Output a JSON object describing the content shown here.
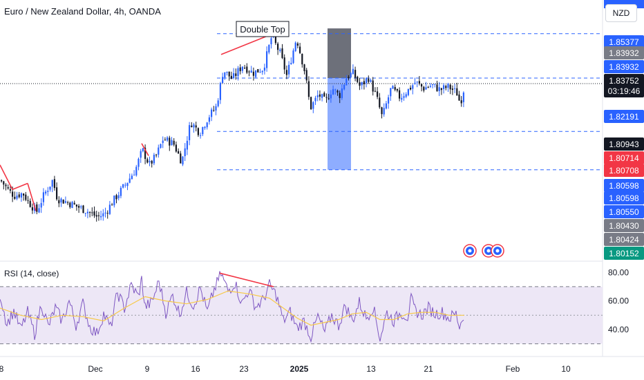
{
  "header": {
    "title": "Euro / New Zealand Dollar, 4h, OANDA",
    "currency_button": "NZD"
  },
  "colors": {
    "up": "#2962ff",
    "down": "#131722",
    "annotation_line": "#f23645",
    "level_line": "#2962ff",
    "rsi_line": "#7e57c2",
    "rsi_ma": "#f7c948",
    "rsi_band": "#ede7f6",
    "shade_top": "#5d606b",
    "shade_bottom": "#82a4ff"
  },
  "chart_data": [
    {
      "type": "candlestick",
      "title": "Euro / New Zealand Dollar, 4h, OANDA",
      "annotation": "Double Top",
      "x_ticks": [
        "8",
        "Dec",
        "9",
        "16",
        "23",
        "2025",
        "13",
        "21",
        "Feb",
        "10"
      ],
      "price_labels": [
        {
          "value": "1.85377",
          "style": "blue"
        },
        {
          "value": "1.83932",
          "style": "gray"
        },
        {
          "value": "1.83932",
          "style": "blue"
        },
        {
          "value": "1.83752",
          "style": "dark",
          "sub": "03:19:46"
        },
        {
          "value": "1.82191",
          "style": "blue"
        },
        {
          "value": "1.80943",
          "style": "dark"
        },
        {
          "value": "1.80714",
          "style": "red"
        },
        {
          "value": "1.80708",
          "style": "red"
        },
        {
          "value": "1.80598",
          "style": "blue"
        },
        {
          "value": "1.80598",
          "style": "blue"
        },
        {
          "value": "1.80550",
          "style": "blue"
        },
        {
          "value": "1.80430",
          "style": "gray"
        },
        {
          "value": "1.80424",
          "style": "gray"
        },
        {
          "value": "1.80152",
          "style": "green"
        }
      ],
      "horizontal_levels": [
        1.85377,
        1.83932,
        1.82191,
        1.80943
      ],
      "current_price": 1.83752,
      "ylim": [
        1.781,
        1.858
      ],
      "segments": [
        [
          0,
          1.806
        ],
        [
          12,
          1.8025
        ],
        [
          20,
          1.801
        ],
        [
          32,
          1.8018
        ],
        [
          40,
          1.799
        ],
        [
          52,
          1.7958
        ],
        [
          62,
          1.801
        ],
        [
          75,
          1.806
        ],
        [
          82,
          1.8
        ],
        [
          95,
          1.799
        ],
        [
          110,
          1.7975
        ],
        [
          125,
          1.796
        ],
        [
          140,
          1.794
        ],
        [
          150,
          1.795
        ],
        [
          165,
          1.8
        ],
        [
          180,
          1.8045
        ],
        [
          195,
          1.8095
        ],
        [
          205,
          1.816
        ],
        [
          215,
          1.811
        ],
        [
          225,
          1.814
        ],
        [
          235,
          1.8195
        ],
        [
          250,
          1.818
        ],
        [
          262,
          1.812
        ],
        [
          275,
          1.825
        ],
        [
          288,
          1.8215
        ],
        [
          300,
          1.8265
        ],
        [
          312,
          1.83
        ],
        [
          322,
          1.842
        ],
        [
          335,
          1.839
        ],
        [
          350,
          1.8435
        ],
        [
          365,
          1.841
        ],
        [
          380,
          1.8425
        ],
        [
          392,
          1.8528
        ],
        [
          404,
          1.8475
        ],
        [
          414,
          1.84
        ],
        [
          428,
          1.8525
        ],
        [
          440,
          1.8415
        ],
        [
          448,
          1.8295
        ],
        [
          460,
          1.834
        ],
        [
          470,
          1.8315
        ],
        [
          480,
          1.836
        ],
        [
          490,
          1.8335
        ],
        [
          500,
          1.8395
        ],
        [
          510,
          1.841
        ],
        [
          520,
          1.8365
        ],
        [
          532,
          1.8395
        ],
        [
          544,
          1.833
        ],
        [
          552,
          1.8265
        ],
        [
          565,
          1.836
        ],
        [
          578,
          1.833
        ],
        [
          590,
          1.8355
        ],
        [
          600,
          1.838
        ],
        [
          612,
          1.836
        ],
        [
          624,
          1.837
        ],
        [
          636,
          1.8355
        ],
        [
          648,
          1.8365
        ],
        [
          660,
          1.8345
        ],
        [
          665,
          1.831
        ],
        [
          672,
          1.8375
        ]
      ]
    },
    {
      "type": "line",
      "title": "RSI (14, close)",
      "y_ticks": [
        "80.00",
        "60.00",
        "40.00"
      ],
      "band": [
        30,
        70
      ],
      "midline": 50,
      "ylim": [
        24,
        84
      ],
      "series": [
        {
          "values": [
            [
              0,
              65
            ],
            [
              10,
              44
            ],
            [
              20,
              53
            ],
            [
              30,
              40
            ],
            [
              40,
              52
            ],
            [
              50,
              37
            ],
            [
              60,
              58
            ],
            [
              70,
              42
            ],
            [
              80,
              55
            ],
            [
              90,
              46
            ],
            [
              100,
              60
            ],
            [
              110,
              43
            ],
            [
              120,
              58
            ],
            [
              130,
              42
            ],
            [
              140,
              37
            ],
            [
              150,
              51
            ],
            [
              160,
              41
            ],
            [
              170,
              66
            ],
            [
              180,
              55
            ],
            [
              190,
              71
            ],
            [
              200,
              63
            ],
            [
              205,
              75
            ],
            [
              210,
              56
            ],
            [
              220,
              59
            ],
            [
              230,
              74
            ],
            [
              240,
              52
            ],
            [
              250,
              64
            ],
            [
              260,
              51
            ],
            [
              270,
              66
            ],
            [
              280,
              57
            ],
            [
              290,
              69
            ],
            [
              300,
              52
            ],
            [
              310,
              68
            ],
            [
              320,
              79
            ],
            [
              330,
              67
            ],
            [
              340,
              73
            ],
            [
              350,
              58
            ],
            [
              360,
              68
            ],
            [
              370,
              56
            ],
            [
              380,
              60
            ],
            [
              390,
              71
            ],
            [
              400,
              64
            ],
            [
              410,
              46
            ],
            [
              420,
              52
            ],
            [
              430,
              41
            ],
            [
              440,
              46
            ],
            [
              450,
              35
            ],
            [
              460,
              49
            ],
            [
              470,
              38
            ],
            [
              480,
              50
            ],
            [
              490,
              43
            ],
            [
              500,
              57
            ],
            [
              510,
              46
            ],
            [
              520,
              59
            ],
            [
              530,
              48
            ],
            [
              540,
              56
            ],
            [
              550,
              34
            ],
            [
              560,
              52
            ],
            [
              570,
              46
            ],
            [
              580,
              52
            ],
            [
              590,
              49
            ],
            [
              595,
              61
            ],
            [
              600,
              54
            ],
            [
              610,
              50
            ],
            [
              620,
              55
            ],
            [
              630,
              51
            ],
            [
              640,
              52
            ],
            [
              650,
              48
            ],
            [
              660,
              51
            ],
            [
              665,
              42
            ],
            [
              672,
              52
            ]
          ]
        },
        {
          "values": [
            [
              0,
              55
            ],
            [
              30,
              50
            ],
            [
              60,
              47
            ],
            [
              90,
              50
            ],
            [
              120,
              49
            ],
            [
              150,
              46
            ],
            [
              180,
              55
            ],
            [
              210,
              63
            ],
            [
              240,
              60
            ],
            [
              270,
              58
            ],
            [
              300,
              61
            ],
            [
              330,
              67
            ],
            [
              360,
              65
            ],
            [
              390,
              62
            ],
            [
              410,
              55
            ],
            [
              430,
              48
            ],
            [
              450,
              43
            ],
            [
              470,
              45
            ],
            [
              490,
              47
            ],
            [
              510,
              51
            ],
            [
              530,
              52
            ],
            [
              550,
              47
            ],
            [
              570,
              47
            ],
            [
              590,
              51
            ],
            [
              610,
              52
            ],
            [
              630,
              52
            ],
            [
              650,
              50
            ],
            [
              672,
              50
            ]
          ]
        }
      ]
    }
  ]
}
